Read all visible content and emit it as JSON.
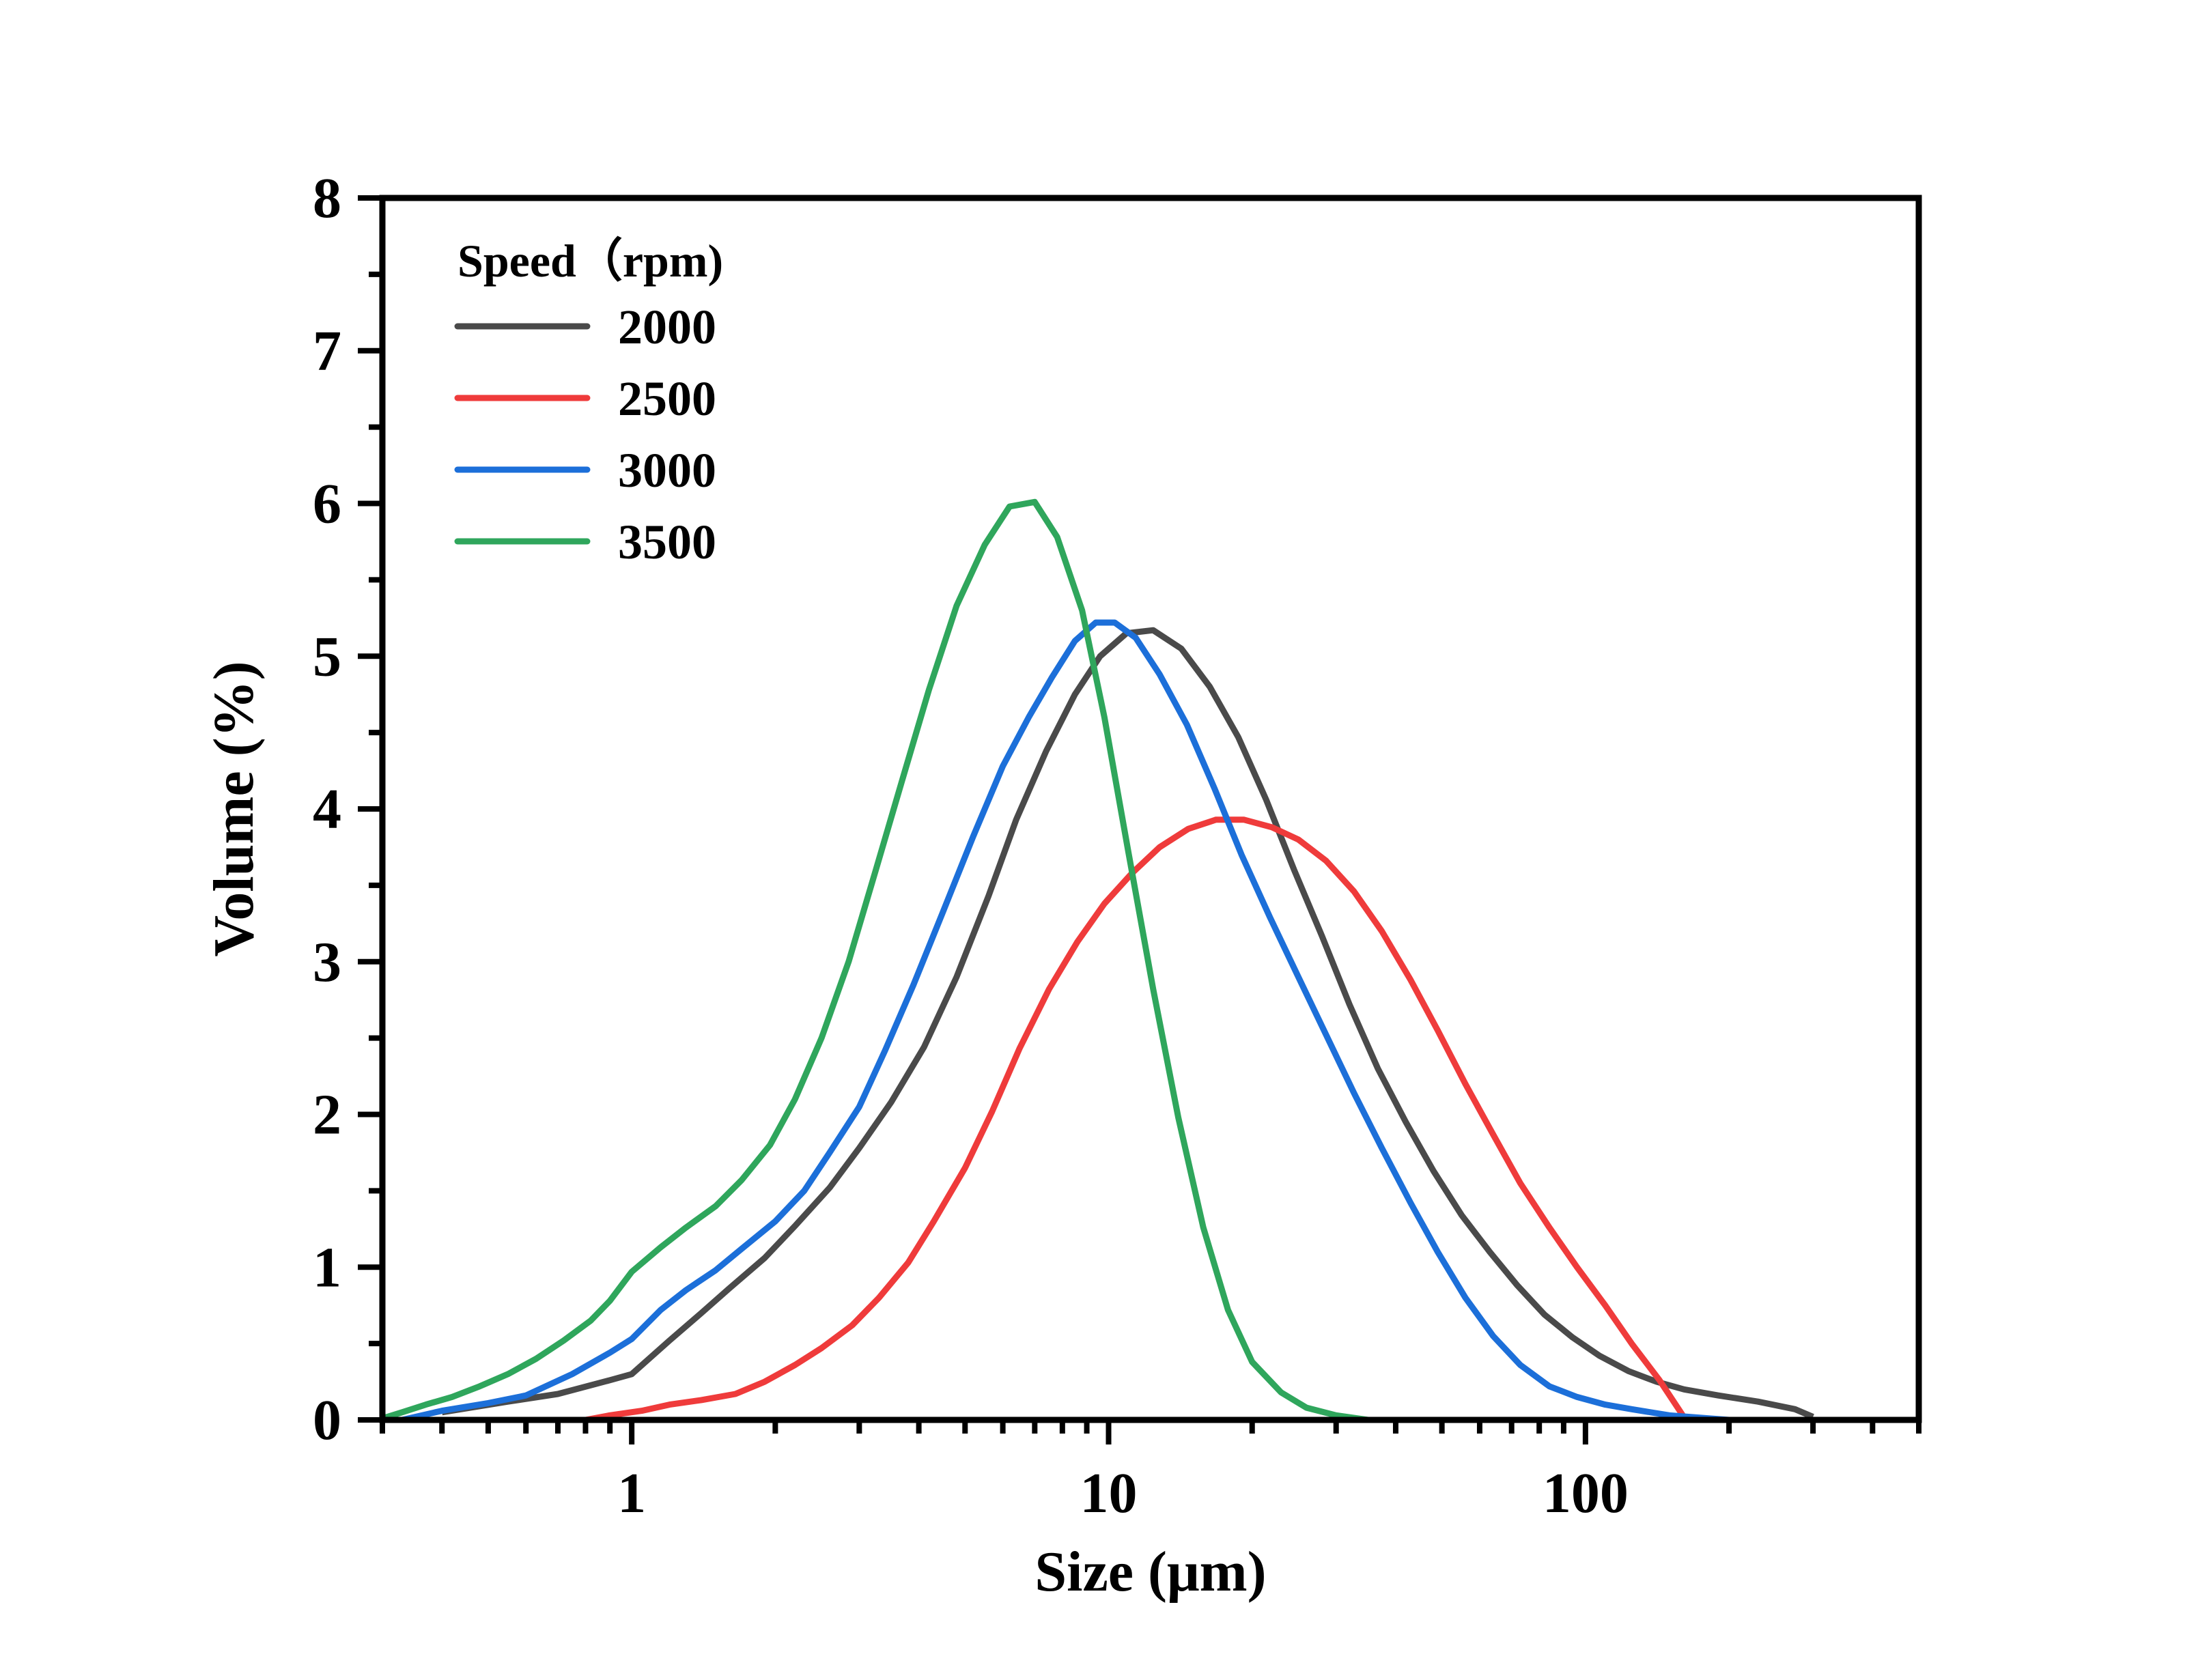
{
  "chart_data": {
    "type": "line",
    "title": "",
    "xlabel": "Size (μm)",
    "ylabel": "Volume (%)",
    "x_scale": "log",
    "xlim": [
      0.3,
      500
    ],
    "ylim": [
      0,
      8
    ],
    "x_ticks": [
      1,
      10,
      100
    ],
    "x_tick_labels": [
      "1",
      "10",
      "100"
    ],
    "y_ticks": [
      0,
      1,
      2,
      3,
      4,
      5,
      6,
      7,
      8
    ],
    "y_tick_labels": [
      "0",
      "1",
      "2",
      "3",
      "4",
      "5",
      "6",
      "7",
      "8"
    ],
    "grid": false,
    "legend": {
      "title": "Speed（rpm)",
      "placement": "top-left"
    },
    "series": [
      {
        "name": "2000",
        "color": "#4a4a4a",
        "points": [
          [
            0.4,
            0.05
          ],
          [
            0.55,
            0.12
          ],
          [
            0.7,
            0.17
          ],
          [
            0.9,
            0.26
          ],
          [
            1.0,
            0.3
          ],
          [
            1.2,
            0.52
          ],
          [
            1.4,
            0.7
          ],
          [
            1.6,
            0.86
          ],
          [
            1.9,
            1.06
          ],
          [
            2.2,
            1.27
          ],
          [
            2.6,
            1.52
          ],
          [
            3.0,
            1.78
          ],
          [
            3.5,
            2.08
          ],
          [
            4.1,
            2.44
          ],
          [
            4.8,
            2.9
          ],
          [
            5.6,
            3.43
          ],
          [
            6.4,
            3.93
          ],
          [
            7.4,
            4.38
          ],
          [
            8.5,
            4.75
          ],
          [
            9.6,
            5.0
          ],
          [
            10.9,
            5.15
          ],
          [
            12.4,
            5.17
          ],
          [
            14.2,
            5.05
          ],
          [
            16.3,
            4.8
          ],
          [
            18.7,
            4.47
          ],
          [
            21.4,
            4.06
          ],
          [
            24.5,
            3.6
          ],
          [
            28,
            3.17
          ],
          [
            32,
            2.72
          ],
          [
            36.7,
            2.3
          ],
          [
            42,
            1.95
          ],
          [
            48,
            1.63
          ],
          [
            55,
            1.34
          ],
          [
            63,
            1.1
          ],
          [
            72,
            0.88
          ],
          [
            82,
            0.69
          ],
          [
            94,
            0.54
          ],
          [
            107,
            0.42
          ],
          [
            123,
            0.32
          ],
          [
            141,
            0.25
          ],
          [
            161,
            0.2
          ],
          [
            190,
            0.16
          ],
          [
            230,
            0.12
          ],
          [
            275,
            0.07
          ],
          [
            300,
            0.02
          ]
        ]
      },
      {
        "name": "2500",
        "color": "#ef3b3b",
        "points": [
          [
            0.8,
            0.0
          ],
          [
            0.9,
            0.03
          ],
          [
            1.05,
            0.06
          ],
          [
            1.2,
            0.1
          ],
          [
            1.4,
            0.13
          ],
          [
            1.65,
            0.17
          ],
          [
            1.9,
            0.25
          ],
          [
            2.2,
            0.36
          ],
          [
            2.5,
            0.47
          ],
          [
            2.9,
            0.62
          ],
          [
            3.3,
            0.8
          ],
          [
            3.8,
            1.03
          ],
          [
            4.3,
            1.3
          ],
          [
            5.0,
            1.65
          ],
          [
            5.7,
            2.02
          ],
          [
            6.5,
            2.43
          ],
          [
            7.5,
            2.82
          ],
          [
            8.6,
            3.13
          ],
          [
            9.8,
            3.38
          ],
          [
            11.2,
            3.58
          ],
          [
            12.8,
            3.75
          ],
          [
            14.7,
            3.87
          ],
          [
            16.8,
            3.93
          ],
          [
            19.2,
            3.93
          ],
          [
            22,
            3.88
          ],
          [
            25,
            3.8
          ],
          [
            28.6,
            3.66
          ],
          [
            32.7,
            3.46
          ],
          [
            37.4,
            3.2
          ],
          [
            43,
            2.88
          ],
          [
            49,
            2.55
          ],
          [
            56,
            2.2
          ],
          [
            64,
            1.87
          ],
          [
            73,
            1.55
          ],
          [
            84,
            1.26
          ],
          [
            96,
            1.0
          ],
          [
            110,
            0.75
          ],
          [
            125,
            0.5
          ],
          [
            143,
            0.26
          ],
          [
            160,
            0.03
          ]
        ]
      },
      {
        "name": "3000",
        "color": "#1c6fd9",
        "points": [
          [
            0.33,
            0.0
          ],
          [
            0.4,
            0.06
          ],
          [
            0.5,
            0.11
          ],
          [
            0.6,
            0.16
          ],
          [
            0.75,
            0.3
          ],
          [
            0.9,
            0.44
          ],
          [
            1.0,
            0.53
          ],
          [
            1.15,
            0.72
          ],
          [
            1.3,
            0.85
          ],
          [
            1.5,
            0.98
          ],
          [
            1.7,
            1.12
          ],
          [
            2.0,
            1.3
          ],
          [
            2.3,
            1.5
          ],
          [
            2.6,
            1.75
          ],
          [
            3.0,
            2.05
          ],
          [
            3.4,
            2.42
          ],
          [
            3.9,
            2.85
          ],
          [
            4.5,
            3.33
          ],
          [
            5.2,
            3.82
          ],
          [
            6.0,
            4.28
          ],
          [
            6.8,
            4.6
          ],
          [
            7.6,
            4.86
          ],
          [
            8.5,
            5.1
          ],
          [
            9.4,
            5.22
          ],
          [
            10.3,
            5.22
          ],
          [
            11.4,
            5.12
          ],
          [
            12.8,
            4.88
          ],
          [
            14.6,
            4.55
          ],
          [
            16.7,
            4.13
          ],
          [
            19,
            3.7
          ],
          [
            21.8,
            3.29
          ],
          [
            25,
            2.9
          ],
          [
            28.6,
            2.52
          ],
          [
            32.7,
            2.14
          ],
          [
            37.4,
            1.78
          ],
          [
            43,
            1.42
          ],
          [
            49,
            1.1
          ],
          [
            56,
            0.8
          ],
          [
            64,
            0.55
          ],
          [
            73,
            0.36
          ],
          [
            84,
            0.22
          ],
          [
            96,
            0.15
          ],
          [
            110,
            0.1
          ],
          [
            125,
            0.07
          ],
          [
            150,
            0.03
          ],
          [
            200,
            0.0
          ]
        ]
      },
      {
        "name": "3500",
        "color": "#2fa65c",
        "points": [
          [
            0.3,
            0.01
          ],
          [
            0.33,
            0.05
          ],
          [
            0.37,
            0.1
          ],
          [
            0.42,
            0.15
          ],
          [
            0.48,
            0.22
          ],
          [
            0.55,
            0.3
          ],
          [
            0.63,
            0.4
          ],
          [
            0.72,
            0.52
          ],
          [
            0.82,
            0.65
          ],
          [
            0.9,
            0.78
          ],
          [
            1.0,
            0.97
          ],
          [
            1.15,
            1.13
          ],
          [
            1.3,
            1.26
          ],
          [
            1.5,
            1.4
          ],
          [
            1.7,
            1.57
          ],
          [
            1.95,
            1.8
          ],
          [
            2.2,
            2.1
          ],
          [
            2.5,
            2.5
          ],
          [
            2.85,
            3.0
          ],
          [
            3.25,
            3.6
          ],
          [
            3.7,
            4.2
          ],
          [
            4.2,
            4.78
          ],
          [
            4.8,
            5.33
          ],
          [
            5.5,
            5.73
          ],
          [
            6.2,
            5.98
          ],
          [
            7.0,
            6.01
          ],
          [
            7.8,
            5.78
          ],
          [
            8.8,
            5.3
          ],
          [
            9.8,
            4.6
          ],
          [
            11.0,
            3.72
          ],
          [
            12.4,
            2.82
          ],
          [
            14.0,
            1.98
          ],
          [
            15.8,
            1.26
          ],
          [
            17.8,
            0.72
          ],
          [
            20,
            0.38
          ],
          [
            23,
            0.18
          ],
          [
            26,
            0.08
          ],
          [
            30,
            0.03
          ],
          [
            35,
            0.0
          ]
        ]
      }
    ]
  }
}
